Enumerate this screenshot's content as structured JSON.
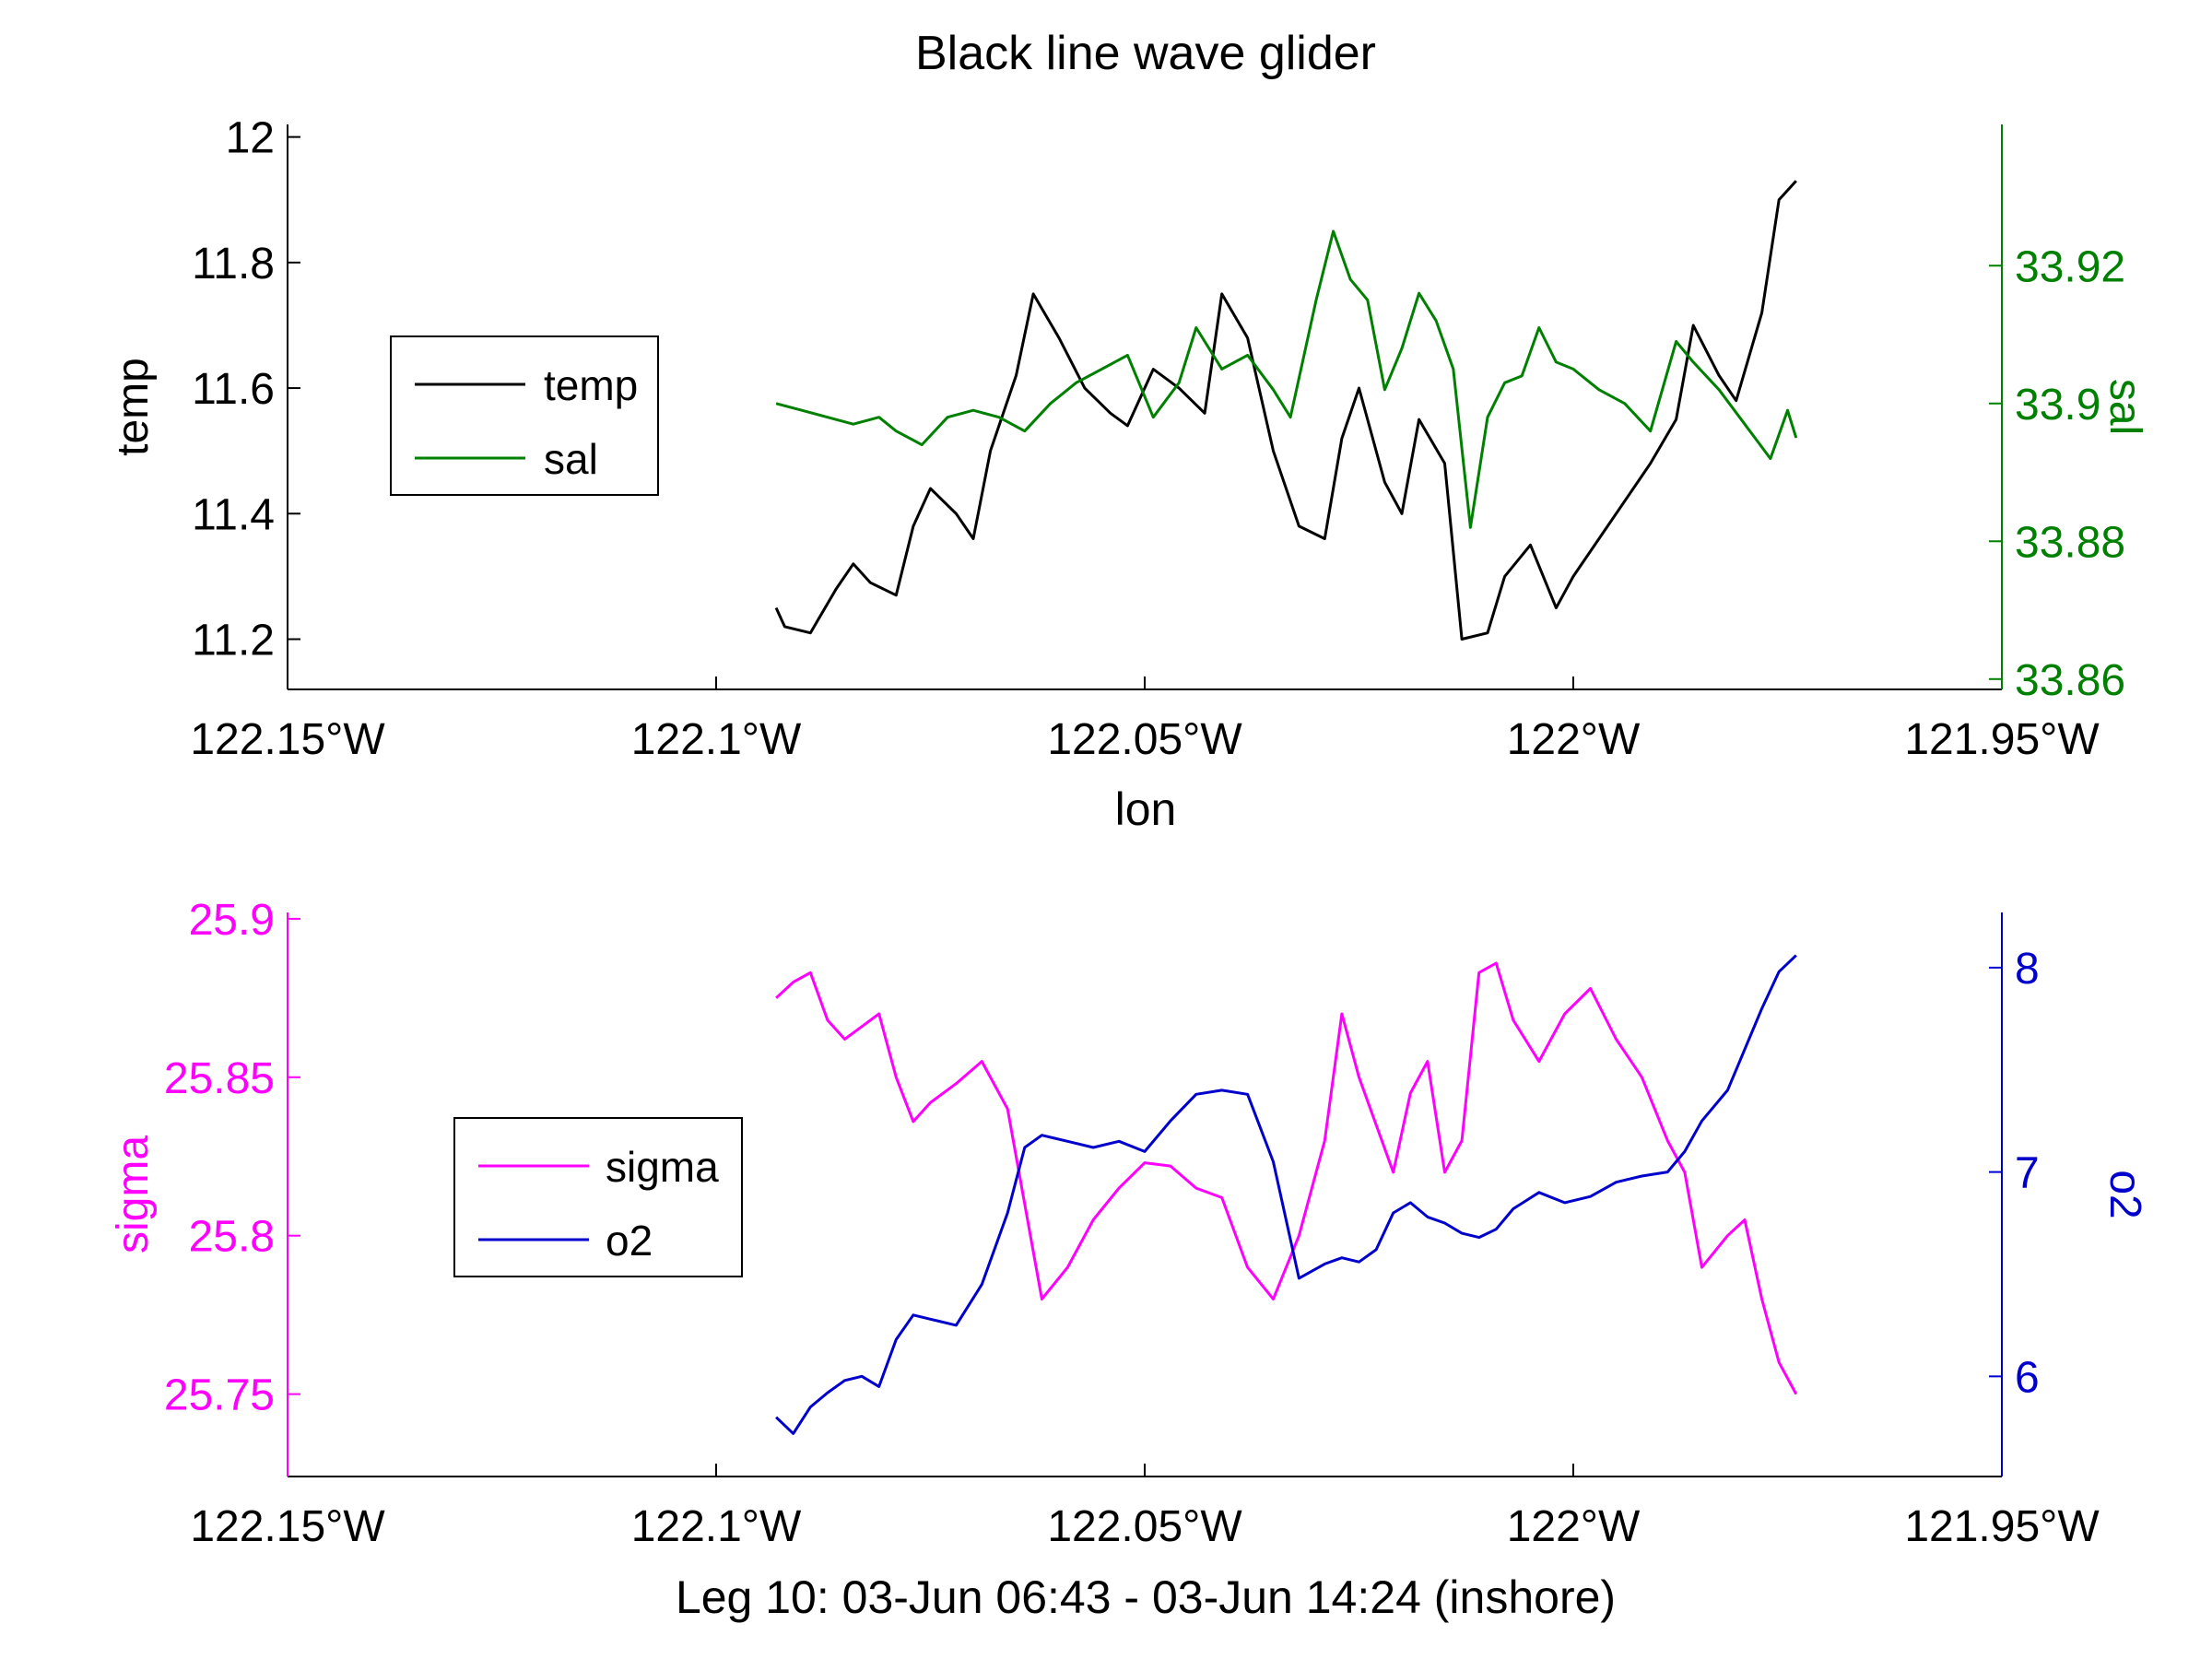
{
  "figure": {
    "title": "Black line wave glider"
  },
  "chart_data": [
    {
      "type": "line",
      "xlabel": "lon",
      "x_ticks": [
        -122.15,
        -122.1,
        -122.05,
        -122.0,
        -121.95
      ],
      "x_tick_labels": [
        "122.15°W",
        "122.1°W",
        "122.05°W",
        "122°W",
        "121.95°W"
      ],
      "xlim": [
        -122.15,
        -121.95
      ],
      "left_axis": {
        "label": "temp",
        "color": "#000000",
        "ylim": [
          11.12,
          12.02
        ],
        "ticks": [
          11.2,
          11.4,
          11.6,
          11.8,
          12
        ],
        "tick_labels": [
          "11.2",
          "11.4",
          "11.6",
          "11.8",
          "12"
        ]
      },
      "right_axis": {
        "label": "sal",
        "color": "#008000",
        "ylim": [
          33.8585,
          33.9405
        ],
        "ticks": [
          33.86,
          33.88,
          33.9,
          33.92
        ],
        "tick_labels": [
          "33.86",
          "33.88",
          "33.9",
          "33.92"
        ]
      },
      "legend": {
        "placement": "center-left",
        "entries": [
          "temp",
          "sal"
        ]
      },
      "series": [
        {
          "name": "temp",
          "axis": "left",
          "color": "#000000",
          "x": [
            -122.093,
            -122.092,
            -122.089,
            -122.086,
            -122.084,
            -122.082,
            -122.079,
            -122.077,
            -122.075,
            -122.072,
            -122.07,
            -122.068,
            -122.065,
            -122.063,
            -122.06,
            -122.057,
            -122.054,
            -122.052,
            -122.049,
            -122.046,
            -122.043,
            -122.041,
            -122.038,
            -122.035,
            -122.032,
            -122.029,
            -122.027,
            -122.025,
            -122.022,
            -122.02,
            -122.018,
            -122.015,
            -122.013,
            -122.01,
            -122.008,
            -122.005,
            -122.002,
            -122.0,
            -121.997,
            -121.994,
            -121.991,
            -121.988,
            -121.986,
            -121.983,
            -121.981,
            -121.978,
            -121.976,
            -121.974
          ],
          "y": [
            11.25,
            11.22,
            11.21,
            11.28,
            11.32,
            11.29,
            11.27,
            11.38,
            11.44,
            11.4,
            11.36,
            11.5,
            11.62,
            11.75,
            11.68,
            11.6,
            11.56,
            11.54,
            11.63,
            11.6,
            11.56,
            11.75,
            11.68,
            11.5,
            11.38,
            11.36,
            11.52,
            11.6,
            11.45,
            11.4,
            11.55,
            11.48,
            11.2,
            11.21,
            11.3,
            11.35,
            11.25,
            11.3,
            11.36,
            11.42,
            11.48,
            11.55,
            11.7,
            11.62,
            11.58,
            11.72,
            11.9,
            11.93
          ]
        },
        {
          "name": "sal",
          "axis": "right",
          "color": "#008000",
          "x": [
            -122.093,
            -122.09,
            -122.087,
            -122.084,
            -122.081,
            -122.079,
            -122.076,
            -122.073,
            -122.07,
            -122.067,
            -122.064,
            -122.061,
            -122.058,
            -122.055,
            -122.052,
            -122.049,
            -122.046,
            -122.044,
            -122.041,
            -122.038,
            -122.035,
            -122.033,
            -122.03,
            -122.028,
            -122.026,
            -122.024,
            -122.022,
            -122.02,
            -122.018,
            -122.016,
            -122.014,
            -122.012,
            -122.01,
            -122.008,
            -122.006,
            -122.004,
            -122.002,
            -122.0,
            -121.997,
            -121.994,
            -121.991,
            -121.988,
            -121.986,
            -121.983,
            -121.98,
            -121.977,
            -121.975,
            -121.974
          ],
          "y": [
            33.9,
            33.899,
            33.898,
            33.897,
            33.898,
            33.896,
            33.894,
            33.898,
            33.899,
            33.898,
            33.896,
            33.9,
            33.903,
            33.905,
            33.907,
            33.898,
            33.903,
            33.911,
            33.905,
            33.907,
            33.902,
            33.898,
            33.915,
            33.925,
            33.918,
            33.915,
            33.902,
            33.908,
            33.916,
            33.912,
            33.905,
            33.882,
            33.898,
            33.903,
            33.904,
            33.911,
            33.906,
            33.905,
            33.902,
            33.9,
            33.896,
            33.909,
            33.906,
            33.902,
            33.897,
            33.892,
            33.899,
            33.895
          ]
        }
      ]
    },
    {
      "type": "line",
      "xlabel": "Leg 10: 03-Jun 06:43 - 03-Jun 14:24 (inshore)",
      "x_ticks": [
        -122.15,
        -122.1,
        -122.05,
        -122.0,
        -121.95
      ],
      "x_tick_labels": [
        "122.15°W",
        "122.1°W",
        "122.05°W",
        "122°W",
        "121.95°W"
      ],
      "xlim": [
        -122.15,
        -121.95
      ],
      "left_axis": {
        "label": "sigma",
        "color": "#FF00FF",
        "ylim": [
          25.724,
          25.902
        ],
        "ticks": [
          25.75,
          25.8,
          25.85,
          25.9
        ],
        "tick_labels": [
          "25.75",
          "25.8",
          "25.85",
          "25.9"
        ]
      },
      "right_axis": {
        "label": "o2",
        "color": "#0000CC",
        "ylim": [
          5.51,
          8.27
        ],
        "ticks": [
          6,
          7,
          8
        ],
        "tick_labels": [
          "6",
          "7",
          "8"
        ]
      },
      "legend": {
        "placement": "center-left",
        "entries": [
          "sigma",
          "o2"
        ]
      },
      "series": [
        {
          "name": "sigma",
          "axis": "left",
          "color": "#FF00FF",
          "x": [
            -122.093,
            -122.091,
            -122.089,
            -122.087,
            -122.085,
            -122.083,
            -122.081,
            -122.079,
            -122.077,
            -122.075,
            -122.072,
            -122.069,
            -122.066,
            -122.064,
            -122.062,
            -122.059,
            -122.056,
            -122.053,
            -122.05,
            -122.047,
            -122.044,
            -122.041,
            -122.038,
            -122.035,
            -122.032,
            -122.029,
            -122.027,
            -122.025,
            -122.023,
            -122.021,
            -122.019,
            -122.017,
            -122.015,
            -122.013,
            -122.011,
            -122.009,
            -122.007,
            -122.004,
            -122.001,
            -121.998,
            -121.995,
            -121.992,
            -121.989,
            -121.987,
            -121.985,
            -121.982,
            -121.98,
            -121.978,
            -121.976,
            -121.974
          ],
          "y": [
            25.875,
            25.88,
            25.883,
            25.868,
            25.862,
            25.866,
            25.87,
            25.85,
            25.836,
            25.842,
            25.848,
            25.855,
            25.84,
            25.81,
            25.78,
            25.79,
            25.805,
            25.815,
            25.823,
            25.822,
            25.815,
            25.812,
            25.79,
            25.78,
            25.8,
            25.83,
            25.87,
            25.85,
            25.835,
            25.82,
            25.845,
            25.855,
            25.82,
            25.83,
            25.883,
            25.886,
            25.868,
            25.855,
            25.87,
            25.878,
            25.862,
            25.85,
            25.83,
            25.82,
            25.79,
            25.8,
            25.805,
            25.78,
            25.76,
            25.75
          ]
        },
        {
          "name": "o2",
          "axis": "right",
          "color": "#0000CC",
          "x": [
            -122.093,
            -122.091,
            -122.089,
            -122.087,
            -122.085,
            -122.083,
            -122.081,
            -122.079,
            -122.077,
            -122.075,
            -122.072,
            -122.069,
            -122.066,
            -122.064,
            -122.062,
            -122.059,
            -122.056,
            -122.053,
            -122.05,
            -122.047,
            -122.044,
            -122.041,
            -122.038,
            -122.035,
            -122.032,
            -122.029,
            -122.027,
            -122.025,
            -122.023,
            -122.021,
            -122.019,
            -122.017,
            -122.015,
            -122.013,
            -122.011,
            -122.009,
            -122.007,
            -122.004,
            -122.001,
            -121.998,
            -121.995,
            -121.992,
            -121.989,
            -121.987,
            -121.985,
            -121.982,
            -121.98,
            -121.978,
            -121.976,
            -121.974
          ],
          "y": [
            5.8,
            5.72,
            5.85,
            5.92,
            5.98,
            6.0,
            5.95,
            6.18,
            6.3,
            6.28,
            6.25,
            6.45,
            6.8,
            7.12,
            7.18,
            7.15,
            7.12,
            7.15,
            7.1,
            7.25,
            7.38,
            7.4,
            7.38,
            7.05,
            6.48,
            6.55,
            6.58,
            6.56,
            6.62,
            6.8,
            6.85,
            6.78,
            6.75,
            6.7,
            6.68,
            6.72,
            6.82,
            6.9,
            6.85,
            6.88,
            6.95,
            6.98,
            7.0,
            7.1,
            7.25,
            7.4,
            7.6,
            7.8,
            7.98,
            8.06
          ]
        }
      ]
    }
  ]
}
